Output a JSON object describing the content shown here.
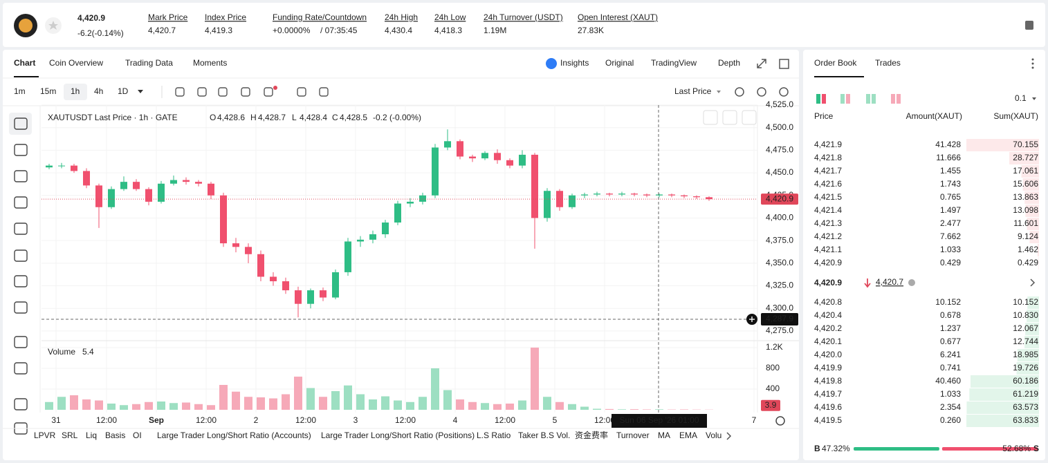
{
  "header": {
    "price": "4,420.9",
    "change": "-6.2(-0.14%)",
    "stats": [
      {
        "label": "Mark Price",
        "value": "4,420.7"
      },
      {
        "label": "Index Price",
        "value": "4,419.3"
      },
      {
        "label": "Funding Rate/Countdown",
        "value": "+0.0000%",
        "extra": "/ 07:35:45"
      },
      {
        "label": "24h High",
        "value": "4,430.4"
      },
      {
        "label": "24h Low",
        "value": "4,418.3"
      },
      {
        "label": "24h Turnover (USDT)",
        "value": "1.19M"
      },
      {
        "label": "Open Interest (XAUT)",
        "value": "27.83K"
      }
    ]
  },
  "tabs": [
    "Chart",
    "Coin Overview",
    "Trading Data",
    "Moments"
  ],
  "views": [
    "Insights",
    "Original",
    "TradingView",
    "Depth"
  ],
  "intervals": [
    "1m",
    "15m",
    "1h",
    "4h",
    "1D"
  ],
  "price_source": "Last Price",
  "chart_data": {
    "type": "candlestick",
    "title": "XAUTUSDT Last Price · 1h · GATE",
    "legend": [
      {
        "label": "O",
        "value": "4,428.6"
      },
      {
        "label": "H",
        "value": "4,428.7"
      },
      {
        "label": "L",
        "value": "4,428.4"
      },
      {
        "label": "C",
        "value": "4,428.5"
      }
    ],
    "legend_change": "-0.2 (-0.00%)",
    "open": [
      4456,
      4458,
      4458,
      4452,
      4436,
      4412,
      4432,
      4440,
      4432,
      4418,
      4438,
      4442,
      4440,
      4438,
      4425,
      4372,
      4368,
      4360,
      4335,
      4330,
      4320,
      4305,
      4320,
      4312,
      4340,
      4374,
      4376,
      4382,
      4395,
      4416,
      4418,
      4425,
      4478,
      4485,
      4468,
      4466,
      4472,
      4464,
      4458,
      4470,
      4400,
      4430,
      4412,
      4425,
      4426,
      4427,
      4426,
      4427,
      4426,
      4425,
      4426,
      4425,
      4424,
      4423
    ],
    "high": [
      4460,
      4461,
      4460,
      4455,
      4438,
      4435,
      4446,
      4443,
      4434,
      4441,
      4447,
      4445,
      4442,
      4440,
      4428,
      4378,
      4372,
      4364,
      4340,
      4334,
      4324,
      4322,
      4323,
      4343,
      4378,
      4380,
      4386,
      4398,
      4419,
      4422,
      4428,
      4482,
      4498,
      4487,
      4470,
      4474,
      4476,
      4466,
      4475,
      4472,
      4433,
      4432,
      4427,
      4428,
      4429,
      4428,
      4429,
      4428,
      4427,
      4427,
      4427,
      4426,
      4425,
      4424
    ],
    "low": [
      4454,
      4455,
      4450,
      4433,
      4389,
      4410,
      4430,
      4430,
      4414,
      4416,
      4436,
      4437,
      4435,
      4421,
      4368,
      4362,
      4350,
      4330,
      4325,
      4316,
      4290,
      4300,
      4308,
      4310,
      4336,
      4368,
      4372,
      4378,
      4392,
      4412,
      4415,
      4422,
      4475,
      4465,
      4462,
      4464,
      4460,
      4455,
      4455,
      4366,
      4396,
      4408,
      4410,
      4422,
      4424,
      4424,
      4424,
      4424,
      4423,
      4423,
      4423,
      4422,
      4421,
      4419
    ],
    "close": [
      4458,
      4458,
      4452,
      4436,
      4412,
      4432,
      4440,
      4432,
      4418,
      4438,
      4442,
      4440,
      4438,
      4425,
      4372,
      4368,
      4360,
      4335,
      4330,
      4320,
      4305,
      4320,
      4312,
      4340,
      4374,
      4376,
      4382,
      4395,
      4416,
      4418,
      4425,
      4478,
      4485,
      4468,
      4466,
      4472,
      4464,
      4458,
      4470,
      4400,
      4430,
      4412,
      4425,
      4426,
      4427,
      4426,
      4427,
      4426,
      4425,
      4426,
      4425,
      4424,
      4423,
      4420.9
    ],
    "volume": [
      150,
      250,
      280,
      200,
      180,
      120,
      90,
      110,
      150,
      160,
      130,
      140,
      110,
      90,
      480,
      350,
      250,
      240,
      220,
      300,
      640,
      420,
      250,
      360,
      470,
      300,
      200,
      260,
      180,
      150,
      250,
      800,
      380,
      200,
      150,
      130,
      110,
      120,
      180,
      1200,
      250,
      150,
      110,
      60,
      20,
      15,
      10,
      12,
      8,
      10,
      6,
      8,
      5,
      3.9
    ],
    "up_color": "#2ebd85",
    "down_color": "#f0506e",
    "up_volume_color": "#9ddfc2",
    "down_volume_color": "#f6a9b8",
    "ylim": [
      4265,
      4525
    ],
    "yticks": [
      {
        "value": 4275,
        "label": "4,275.0"
      },
      {
        "value": 4300,
        "label": "4,300.0"
      },
      {
        "value": 4325,
        "label": "4,325.0"
      },
      {
        "value": 4350,
        "label": "4,350.0"
      },
      {
        "value": 4375,
        "label": "4,375.0"
      },
      {
        "value": 4400,
        "label": "4,400.0"
      },
      {
        "value": 4425,
        "label": "4,425.0"
      },
      {
        "value": 4450,
        "label": "4,450.0"
      },
      {
        "value": 4475,
        "label": "4,475.0"
      },
      {
        "value": 4500,
        "label": "4,500.0"
      },
      {
        "value": 4525,
        "label": "4,525.0"
      }
    ],
    "x_labels": [
      "31",
      "12:00",
      "Sep",
      "12:00",
      "2",
      "12:00",
      "3",
      "12:00",
      "4",
      "12:00",
      "5",
      "12:00",
      "7"
    ],
    "last_price": {
      "value": 4420.9,
      "label": "4,420.9"
    },
    "crosshair": {
      "price": {
        "value": 4287.9,
        "label": "4,287.9"
      },
      "time": "Sun 06 Sep '26  01:00",
      "volume_label": "Volume",
      "volume": "5.4"
    },
    "volume_ylim": [
      0,
      1300
    ],
    "volume_yticks": [
      400,
      800,
      {
        "value": 1200,
        "label": "1.2K"
      }
    ],
    "grid": true
  },
  "indicators": [
    "LPVR",
    "SRL",
    "Liq",
    "Basis",
    "OI",
    "Large Trader Long/Short Ratio (Accounts)",
    "Large Trader Long/Short Ratio (Positions)",
    "L.S Ratio",
    "Taker B.S Vol.",
    "资金费率",
    "Turnover",
    "MA",
    "EMA",
    "Volu"
  ],
  "order_book": {
    "tabs": [
      "Order Book",
      "Trades"
    ],
    "precision": "0.1",
    "columns": [
      "Price",
      "Amount(XAUT)",
      "Sum(XAUT)"
    ],
    "asks": [
      [
        "4,421.9",
        "41.428",
        "70.155"
      ],
      [
        "4,421.8",
        "11.666",
        "28.727"
      ],
      [
        "4,421.7",
        "1.455",
        "17.061"
      ],
      [
        "4,421.6",
        "1.743",
        "15.606"
      ],
      [
        "4,421.5",
        "0.765",
        "13.863"
      ],
      [
        "4,421.4",
        "1.497",
        "13.098"
      ],
      [
        "4,421.3",
        "2.477",
        "11.601"
      ],
      [
        "4,421.2",
        "7.662",
        "9.124"
      ],
      [
        "4,421.1",
        "1.033",
        "1.462"
      ],
      [
        "4,420.9",
        "0.429",
        "0.429"
      ]
    ],
    "mid": "4,420.9",
    "mark": "4,420.7",
    "bids": [
      [
        "4,420.8",
        "10.152",
        "10.152"
      ],
      [
        "4,420.4",
        "0.678",
        "10.830"
      ],
      [
        "4,420.2",
        "1.237",
        "12.067"
      ],
      [
        "4,420.1",
        "0.677",
        "12.744"
      ],
      [
        "4,420.0",
        "6.241",
        "18.985"
      ],
      [
        "4,419.9",
        "0.741",
        "19.726"
      ],
      [
        "4,419.8",
        "40.460",
        "60.186"
      ],
      [
        "4,419.7",
        "1.033",
        "61.219"
      ],
      [
        "4,419.6",
        "2.354",
        "63.573"
      ],
      [
        "4,419.5",
        "0.260",
        "63.833"
      ]
    ],
    "buy": "B",
    "buy_ratio": "47.32%",
    "sell_ratio": "52.68%",
    "sell": "S"
  }
}
